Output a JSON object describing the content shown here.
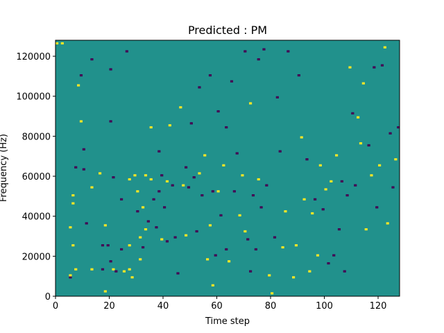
{
  "chart_data": {
    "type": "heatmap",
    "title": "Predicted : PM",
    "xlabel": "Time step",
    "ylabel": "Frequency (Hz)",
    "xlim": [
      0,
      128
    ],
    "ylim": [
      0,
      128000
    ],
    "x_ticks": [
      0,
      20,
      40,
      60,
      80,
      100,
      120
    ],
    "y_ticks": [
      0,
      20000,
      40000,
      60000,
      80000,
      100000,
      120000
    ],
    "x_tick_labels": [
      "0",
      "20",
      "40",
      "60",
      "80",
      "100",
      "120"
    ],
    "y_tick_labels": [
      "0",
      "20000",
      "40000",
      "60000",
      "80000",
      "100000",
      "120000"
    ],
    "grid": false,
    "colormap": "viridis",
    "values_legend": {
      "-1": "#440154",
      "0": "#21918c",
      "1": "#fde725"
    },
    "background_value": 0,
    "grid_shape": {
      "time_steps": 128,
      "frequency_bins": 128,
      "bin_hz": 1000
    },
    "cells": [
      {
        "t": 0,
        "f": 126,
        "v": 1
      },
      {
        "t": 2,
        "f": 126,
        "v": 1
      },
      {
        "t": 5,
        "f": 34,
        "v": 1
      },
      {
        "t": 5,
        "f": 9,
        "v": -1
      },
      {
        "t": 5,
        "f": 10,
        "v": 1
      },
      {
        "t": 6,
        "f": 25,
        "v": 1
      },
      {
        "t": 6,
        "f": 46,
        "v": 1
      },
      {
        "t": 6,
        "f": 50,
        "v": 1
      },
      {
        "t": 7,
        "f": 64,
        "v": -1
      },
      {
        "t": 7,
        "f": 13,
        "v": 1
      },
      {
        "t": 8,
        "f": 105,
        "v": 1
      },
      {
        "t": 9,
        "f": 110,
        "v": -1
      },
      {
        "t": 9,
        "f": 87,
        "v": 1
      },
      {
        "t": 10,
        "f": 73,
        "v": -1
      },
      {
        "t": 10,
        "f": 63,
        "v": -1
      },
      {
        "t": 11,
        "f": 36,
        "v": -1
      },
      {
        "t": 13,
        "f": 118,
        "v": -1
      },
      {
        "t": 13,
        "f": 54,
        "v": 1
      },
      {
        "t": 13,
        "f": 13,
        "v": 1
      },
      {
        "t": 16,
        "f": 61,
        "v": 1
      },
      {
        "t": 17,
        "f": 25,
        "v": -1
      },
      {
        "t": 17,
        "f": 13,
        "v": -1
      },
      {
        "t": 18,
        "f": 35,
        "v": 1
      },
      {
        "t": 18,
        "f": 2,
        "v": 1
      },
      {
        "t": 19,
        "f": 25,
        "v": -1
      },
      {
        "t": 20,
        "f": 113,
        "v": -1
      },
      {
        "t": 20,
        "f": 87,
        "v": -1
      },
      {
        "t": 20,
        "f": 17,
        "v": -1
      },
      {
        "t": 21,
        "f": 59,
        "v": -1
      },
      {
        "t": 21,
        "f": 13,
        "v": 1
      },
      {
        "t": 22,
        "f": 12,
        "v": -1
      },
      {
        "t": 24,
        "f": 48,
        "v": -1
      },
      {
        "t": 24,
        "f": 23,
        "v": -1
      },
      {
        "t": 25,
        "f": 12,
        "v": 1
      },
      {
        "t": 26,
        "f": 122,
        "v": -1
      },
      {
        "t": 27,
        "f": 58,
        "v": 1
      },
      {
        "t": 27,
        "f": 25,
        "v": 1
      },
      {
        "t": 27,
        "f": 13,
        "v": 1
      },
      {
        "t": 28,
        "f": 9,
        "v": 1
      },
      {
        "t": 29,
        "f": 60,
        "v": 1
      },
      {
        "t": 30,
        "f": 52,
        "v": 1
      },
      {
        "t": 30,
        "f": 42,
        "v": -1
      },
      {
        "t": 31,
        "f": 18,
        "v": 1
      },
      {
        "t": 31,
        "f": 29,
        "v": 1
      },
      {
        "t": 32,
        "f": 44,
        "v": 1
      },
      {
        "t": 32,
        "f": 24,
        "v": -1
      },
      {
        "t": 33,
        "f": 60,
        "v": 1
      },
      {
        "t": 33,
        "f": 33,
        "v": 1
      },
      {
        "t": 34,
        "f": 37,
        "v": -1
      },
      {
        "t": 35,
        "f": 58,
        "v": 1
      },
      {
        "t": 35,
        "f": 84,
        "v": 1
      },
      {
        "t": 36,
        "f": 48,
        "v": -1
      },
      {
        "t": 37,
        "f": 34,
        "v": -1
      },
      {
        "t": 38,
        "f": 72,
        "v": -1
      },
      {
        "t": 38,
        "f": 52,
        "v": -1
      },
      {
        "t": 39,
        "f": 60,
        "v": -1
      },
      {
        "t": 39,
        "f": 28,
        "v": 1
      },
      {
        "t": 40,
        "f": 44,
        "v": -1
      },
      {
        "t": 41,
        "f": 57,
        "v": 1
      },
      {
        "t": 41,
        "f": 27,
        "v": -1
      },
      {
        "t": 42,
        "f": 85,
        "v": 1
      },
      {
        "t": 43,
        "f": 55,
        "v": -1
      },
      {
        "t": 44,
        "f": 29,
        "v": -1
      },
      {
        "t": 45,
        "f": 11,
        "v": -1
      },
      {
        "t": 46,
        "f": 94,
        "v": 1
      },
      {
        "t": 47,
        "f": 55,
        "v": 1
      },
      {
        "t": 48,
        "f": 64,
        "v": -1
      },
      {
        "t": 48,
        "f": 30,
        "v": 1
      },
      {
        "t": 49,
        "f": 54,
        "v": -1
      },
      {
        "t": 50,
        "f": 86,
        "v": -1
      },
      {
        "t": 51,
        "f": 59,
        "v": -1
      },
      {
        "t": 52,
        "f": 32,
        "v": -1
      },
      {
        "t": 53,
        "f": 104,
        "v": -1
      },
      {
        "t": 53,
        "f": 61,
        "v": 1
      },
      {
        "t": 54,
        "f": 50,
        "v": -1
      },
      {
        "t": 55,
        "f": 70,
        "v": 1
      },
      {
        "t": 56,
        "f": 18,
        "v": 1
      },
      {
        "t": 57,
        "f": 110,
        "v": -1
      },
      {
        "t": 57,
        "f": 35,
        "v": 1
      },
      {
        "t": 58,
        "f": 52,
        "v": -1
      },
      {
        "t": 58,
        "f": 5,
        "v": 1
      },
      {
        "t": 59,
        "f": 20,
        "v": -1
      },
      {
        "t": 60,
        "f": 92,
        "v": -1
      },
      {
        "t": 60,
        "f": 52,
        "v": 1
      },
      {
        "t": 61,
        "f": 40,
        "v": -1
      },
      {
        "t": 62,
        "f": 65,
        "v": 1
      },
      {
        "t": 63,
        "f": 84,
        "v": -1
      },
      {
        "t": 63,
        "f": 23,
        "v": -1
      },
      {
        "t": 64,
        "f": 17,
        "v": 1
      },
      {
        "t": 65,
        "f": 107,
        "v": -1
      },
      {
        "t": 66,
        "f": 52,
        "v": -1
      },
      {
        "t": 67,
        "f": 71,
        "v": -1
      },
      {
        "t": 68,
        "f": 40,
        "v": 1
      },
      {
        "t": 69,
        "f": 60,
        "v": 1
      },
      {
        "t": 70,
        "f": 122,
        "v": -1
      },
      {
        "t": 70,
        "f": 32,
        "v": 1
      },
      {
        "t": 71,
        "f": 28,
        "v": -1
      },
      {
        "t": 72,
        "f": 96,
        "v": 1
      },
      {
        "t": 72,
        "f": 12,
        "v": -1
      },
      {
        "t": 73,
        "f": 50,
        "v": -1
      },
      {
        "t": 74,
        "f": 23,
        "v": -1
      },
      {
        "t": 75,
        "f": 118,
        "v": -1
      },
      {
        "t": 75,
        "f": 58,
        "v": 1
      },
      {
        "t": 76,
        "f": 44,
        "v": -1
      },
      {
        "t": 77,
        "f": 123,
        "v": -1
      },
      {
        "t": 78,
        "f": 55,
        "v": -1
      },
      {
        "t": 79,
        "f": 10,
        "v": 1
      },
      {
        "t": 80,
        "f": 1,
        "v": 1
      },
      {
        "t": 81,
        "f": 29,
        "v": -1
      },
      {
        "t": 82,
        "f": 99,
        "v": -1
      },
      {
        "t": 83,
        "f": 72,
        "v": -1
      },
      {
        "t": 84,
        "f": 24,
        "v": 1
      },
      {
        "t": 85,
        "f": 42,
        "v": 1
      },
      {
        "t": 86,
        "f": 122,
        "v": -1
      },
      {
        "t": 88,
        "f": 9,
        "v": 1
      },
      {
        "t": 89,
        "f": 25,
        "v": 1
      },
      {
        "t": 90,
        "f": 110,
        "v": -1
      },
      {
        "t": 91,
        "f": 79,
        "v": 1
      },
      {
        "t": 92,
        "f": 48,
        "v": 1
      },
      {
        "t": 93,
        "f": 68,
        "v": -1
      },
      {
        "t": 94,
        "f": 12,
        "v": 1
      },
      {
        "t": 95,
        "f": 41,
        "v": 1
      },
      {
        "t": 96,
        "f": 48,
        "v": -1
      },
      {
        "t": 97,
        "f": 20,
        "v": 1
      },
      {
        "t": 98,
        "f": 65,
        "v": 1
      },
      {
        "t": 99,
        "f": 43,
        "v": -1
      },
      {
        "t": 100,
        "f": 53,
        "v": 1
      },
      {
        "t": 101,
        "f": 16,
        "v": -1
      },
      {
        "t": 102,
        "f": 57,
        "v": 1
      },
      {
        "t": 103,
        "f": 20,
        "v": -1
      },
      {
        "t": 104,
        "f": 70,
        "v": 1
      },
      {
        "t": 105,
        "f": 33,
        "v": -1
      },
      {
        "t": 106,
        "f": 57,
        "v": -1
      },
      {
        "t": 107,
        "f": 12,
        "v": -1
      },
      {
        "t": 108,
        "f": 50,
        "v": -1
      },
      {
        "t": 109,
        "f": 114,
        "v": 1
      },
      {
        "t": 110,
        "f": 91,
        "v": -1
      },
      {
        "t": 111,
        "f": 55,
        "v": -1
      },
      {
        "t": 112,
        "f": 89,
        "v": 1
      },
      {
        "t": 113,
        "f": 76,
        "v": 1
      },
      {
        "t": 114,
        "f": 106,
        "v": 1
      },
      {
        "t": 115,
        "f": 33,
        "v": 1
      },
      {
        "t": 116,
        "f": 75,
        "v": -1
      },
      {
        "t": 117,
        "f": 60,
        "v": 1
      },
      {
        "t": 118,
        "f": 114,
        "v": -1
      },
      {
        "t": 119,
        "f": 44,
        "v": -1
      },
      {
        "t": 120,
        "f": 65,
        "v": 1
      },
      {
        "t": 121,
        "f": 115,
        "v": -1
      },
      {
        "t": 122,
        "f": 124,
        "v": 1
      },
      {
        "t": 123,
        "f": 36,
        "v": 1
      },
      {
        "t": 124,
        "f": 81,
        "v": -1
      },
      {
        "t": 125,
        "f": 54,
        "v": -1
      },
      {
        "t": 126,
        "f": 68,
        "v": 1
      },
      {
        "t": 127,
        "f": 84,
        "v": -1
      }
    ]
  }
}
